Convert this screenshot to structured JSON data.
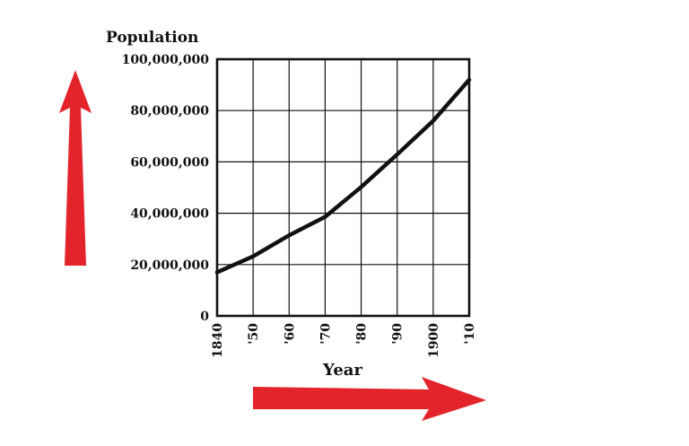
{
  "colors": {
    "ink": "#111111",
    "arrow_red": "#e3242b",
    "background": "#ffffff"
  },
  "chart_data": {
    "type": "line",
    "ylabel": "Population",
    "xlabel": "Year",
    "x": [
      1840,
      1850,
      1860,
      1870,
      1880,
      1890,
      1900,
      1910
    ],
    "x_tick_labels": [
      "1840",
      "'50",
      "'60",
      "'70",
      "'80",
      "'90",
      "1900",
      "'10"
    ],
    "y_tick_values": [
      0,
      20000000,
      40000000,
      60000000,
      80000000,
      100000000
    ],
    "y_tick_labels": [
      "0",
      "20,000,000",
      "40,000,000",
      "60,000,000",
      "80,000,000",
      "100,000,000"
    ],
    "xlim": [
      1840,
      1910
    ],
    "ylim": [
      0,
      100000000
    ],
    "grid": true,
    "series": [
      {
        "values": [
          17000000,
          23200000,
          31400000,
          38600000,
          50200000,
          62900000,
          76000000,
          92000000
        ]
      }
    ],
    "decorations": {
      "up_arrow_icon": "red-up-arrow",
      "right_arrow_icon": "red-right-arrow"
    }
  }
}
